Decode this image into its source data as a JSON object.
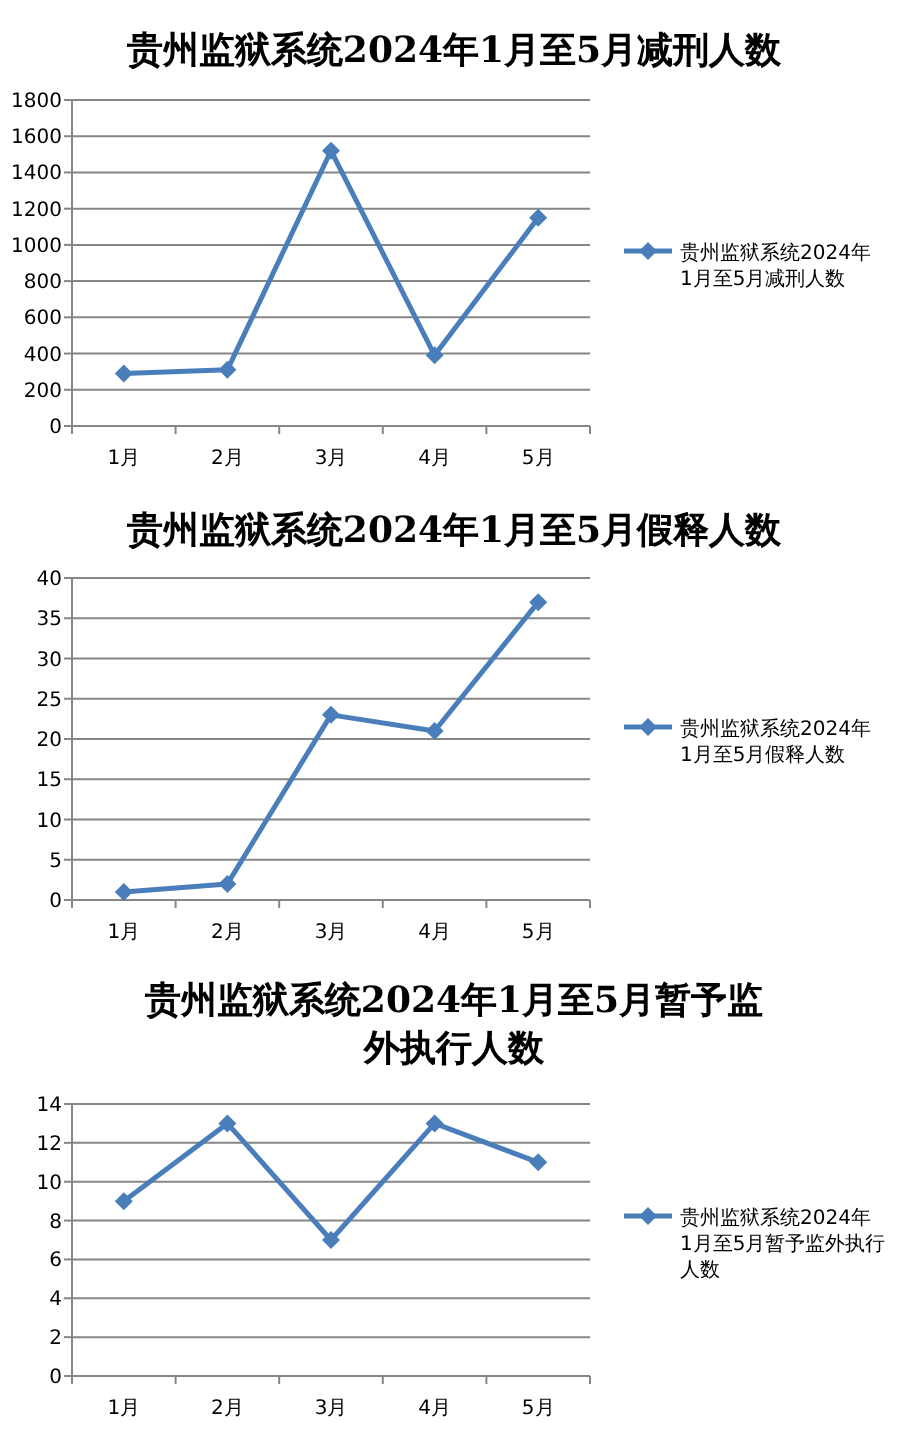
{
  "chart_data": [
    {
      "type": "line",
      "title": "贵州监狱系统2024年1月至5月减刑人数",
      "categories": [
        "1月",
        "2月",
        "3月",
        "4月",
        "5月"
      ],
      "series": [
        {
          "name": "贵州监狱系统2024年1月至5月减刑人数",
          "color": "#4a7ebb",
          "values": [
            290,
            310,
            1520,
            390,
            1150
          ]
        }
      ],
      "ylim": [
        0,
        1800
      ],
      "yticks": [
        0,
        200,
        400,
        600,
        800,
        1000,
        1200,
        1400,
        1600,
        1800
      ],
      "grid": "y",
      "legend": "right",
      "marker": "diamond"
    },
    {
      "type": "line",
      "title": "贵州监狱系统2024年1月至5月假释人数",
      "categories": [
        "1月",
        "2月",
        "3月",
        "4月",
        "5月"
      ],
      "series": [
        {
          "name": "贵州监狱系统2024年1月至5月假释人数",
          "color": "#4a7ebb",
          "values": [
            1,
            2,
            23,
            21,
            37
          ]
        }
      ],
      "ylim": [
        0,
        40
      ],
      "yticks": [
        0,
        5,
        10,
        15,
        20,
        25,
        30,
        35,
        40
      ],
      "grid": "y",
      "legend": "right",
      "marker": "diamond"
    },
    {
      "type": "line",
      "title": "贵州监狱系统2024年1月至5月暂予监外执行人数",
      "categories": [
        "1月",
        "2月",
        "3月",
        "4月",
        "5月"
      ],
      "series": [
        {
          "name": "贵州监狱系统2024年1月至5月暂予监外执行人数",
          "color": "#4a7ebb",
          "values": [
            9,
            13,
            7,
            13,
            11
          ]
        }
      ],
      "ylim": [
        0,
        14
      ],
      "yticks": [
        0,
        2,
        4,
        6,
        8,
        10,
        12,
        14
      ],
      "grid": "y",
      "legend": "right",
      "marker": "diamond"
    }
  ]
}
